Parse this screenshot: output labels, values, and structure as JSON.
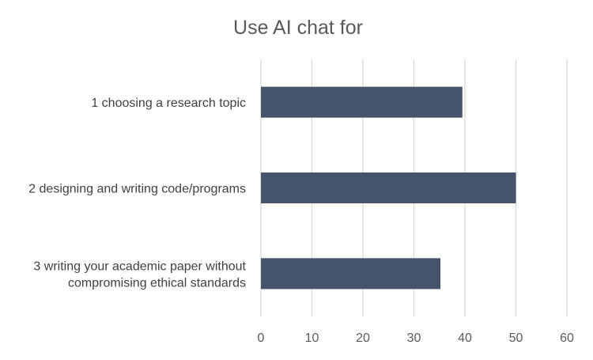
{
  "chart_data": {
    "type": "bar",
    "orientation": "horizontal",
    "title": "Use AI chat for",
    "xlabel": "",
    "ylabel": "",
    "categories": [
      [
        "1 choosing a research topic"
      ],
      [
        "2 designing and writing code/programs"
      ],
      [
        "3 writing your academic paper without",
        "compromising ethical standards"
      ]
    ],
    "values": [
      39.5,
      50,
      35.2
    ],
    "xlim": [
      0,
      60
    ],
    "xticks": [
      "0",
      "10",
      "20",
      "30",
      "40",
      "50",
      "60"
    ],
    "grid": true,
    "legend": "none",
    "bar_color": "#44546a"
  }
}
